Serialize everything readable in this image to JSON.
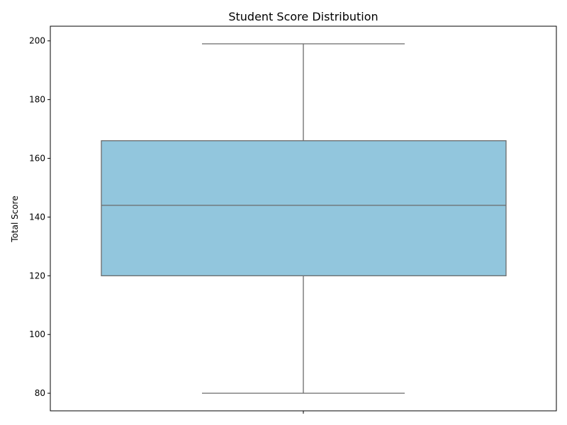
{
  "chart_data": {
    "type": "box",
    "title": "Student Score Distribution",
    "xlabel": "",
    "ylabel": "Total Score",
    "ylim": [
      74,
      205
    ],
    "yticks": [
      80,
      100,
      120,
      140,
      160,
      180,
      200
    ],
    "grid": false,
    "box": {
      "min": 80,
      "q1": 120,
      "median": 144,
      "q3": 166,
      "max": 199
    },
    "colors": {
      "box_fill": "#92c6dd",
      "line": "#6b6b6b",
      "axis": "#000000"
    }
  }
}
